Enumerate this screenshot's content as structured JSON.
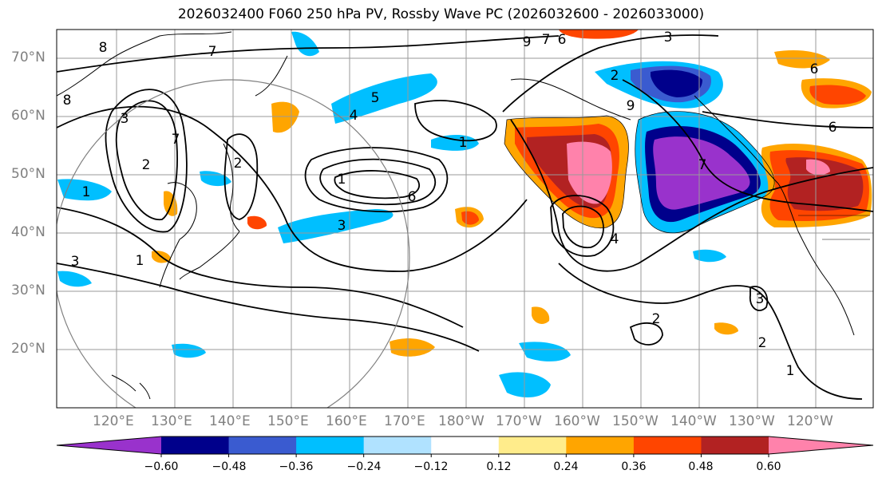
{
  "title": "2026032400 F060 250 hPa PV, Rossby Wave PC (2026032600 - 2026033000)",
  "lat_labels": [
    "70°N",
    "60°N",
    "50°N",
    "40°N",
    "30°N",
    "20°N"
  ],
  "lon_labels": [
    "120°E",
    "130°E",
    "140°E",
    "150°E",
    "160°E",
    "170°E",
    "180°W",
    "170°W",
    "160°W",
    "150°W",
    "140°W",
    "130°W",
    "120°W"
  ],
  "colorbar": {
    "colors": [
      "#9932cc",
      "#00008b",
      "#3a5bd0",
      "#00bfff",
      "#b0e2ff",
      "#ffffff",
      "#ffec8b",
      "#ffa500",
      "#ff4500",
      "#b22222",
      "#ff82ab"
    ],
    "tick_labels": [
      "−0.60",
      "−0.48",
      "−0.36",
      "−0.24",
      "−0.12",
      "0.12",
      "0.24",
      "0.36",
      "0.48",
      "0.60"
    ]
  },
  "contour_labels": [
    "8",
    "8",
    "3",
    "7",
    "2",
    "1",
    "3",
    "1",
    "1",
    "5",
    "4",
    "7",
    "6",
    "3",
    "2",
    "7",
    "6",
    "9",
    "3",
    "2",
    "6",
    "7",
    "1",
    "9",
    "4",
    "3",
    "2",
    "1",
    "2",
    "6"
  ]
}
